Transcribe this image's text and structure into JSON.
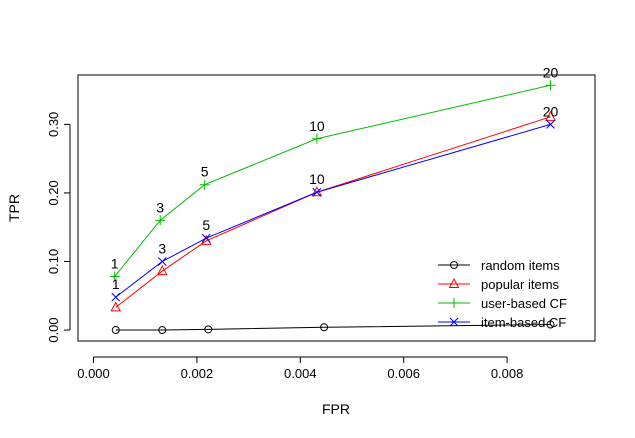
{
  "chart_data": {
    "type": "line",
    "xlabel": "FPR",
    "ylabel": "TPR",
    "xlim": [
      -0.0003,
      0.0097
    ],
    "ylim": [
      -0.016,
      0.372
    ],
    "x_ticks": [
      0.0,
      0.002,
      0.004,
      0.006,
      0.008
    ],
    "x_tick_labels": [
      "0.000",
      "0.002",
      "0.004",
      "0.006",
      "0.008"
    ],
    "y_ticks": [
      0.0,
      0.1,
      0.2,
      0.3
    ],
    "y_tick_labels": [
      "0.00",
      "0.10",
      "0.20",
      "0.30"
    ],
    "grid": false,
    "legend_position": "bottom-right",
    "series": [
      {
        "name": "random items",
        "color": "#000000",
        "marker": "circle",
        "x": [
          0.00043,
          0.00133,
          0.00222,
          0.00446,
          0.00884
        ],
        "y": [
          0.0,
          0.0,
          0.001,
          0.004,
          0.008
        ],
        "labels": [
          "",
          "",
          "",
          "",
          ""
        ]
      },
      {
        "name": "popular items",
        "color": "#ff0000",
        "marker": "triangle",
        "x": [
          0.00043,
          0.00133,
          0.00218,
          0.00432,
          0.00884
        ],
        "y": [
          0.033,
          0.086,
          0.13,
          0.201,
          0.311
        ],
        "labels": [
          "",
          "",
          "",
          "",
          ""
        ]
      },
      {
        "name": "user-based CF",
        "color": "#00bb00",
        "marker": "plus",
        "x": [
          0.00041,
          0.00129,
          0.00215,
          0.00432,
          0.00884
        ],
        "y": [
          0.078,
          0.16,
          0.212,
          0.279,
          0.357
        ],
        "labels": [
          "1",
          "3",
          "5",
          "10",
          "20"
        ]
      },
      {
        "name": "item-based CF",
        "color": "#0000ff",
        "marker": "cross",
        "x": [
          0.00043,
          0.00133,
          0.00218,
          0.00432,
          0.00884
        ],
        "y": [
          0.048,
          0.1,
          0.134,
          0.201,
          0.3
        ],
        "labels": [
          "1",
          "3",
          "5",
          "10",
          "20"
        ]
      }
    ]
  }
}
